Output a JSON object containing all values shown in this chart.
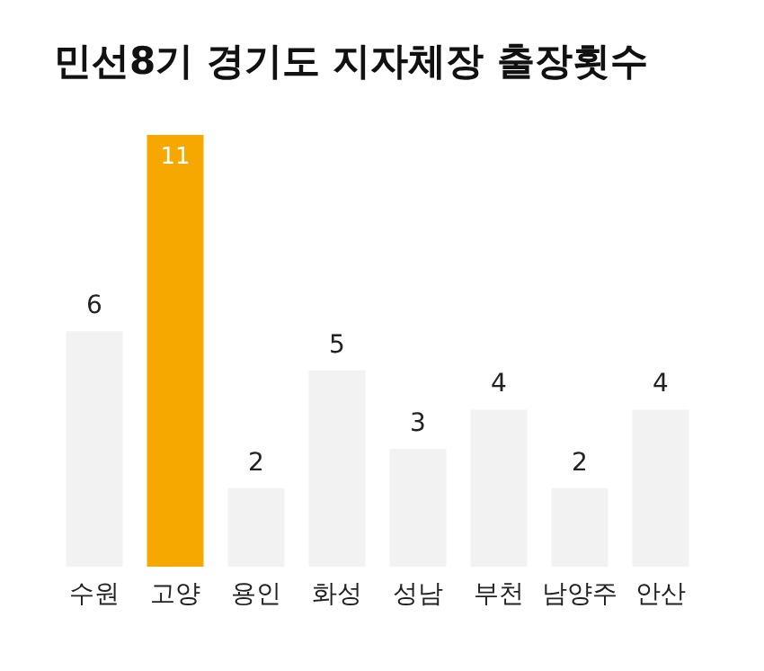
{
  "chart_data": {
    "type": "bar",
    "title": "민선8기 경기도 지자체장 출장횟수",
    "categories": [
      "수원",
      "고양",
      "용인",
      "화성",
      "성남",
      "부천",
      "남양주",
      "안산"
    ],
    "values": [
      6,
      11,
      2,
      5,
      3,
      4,
      2,
      4
    ],
    "colors": [
      "#f2f2f2",
      "#f6a800",
      "#f2f2f2",
      "#f2f2f2",
      "#f2f2f2",
      "#f2f2f2",
      "#f2f2f2",
      "#f2f2f2"
    ],
    "data_labels": true,
    "tick_labels": "x",
    "grid": false
  }
}
